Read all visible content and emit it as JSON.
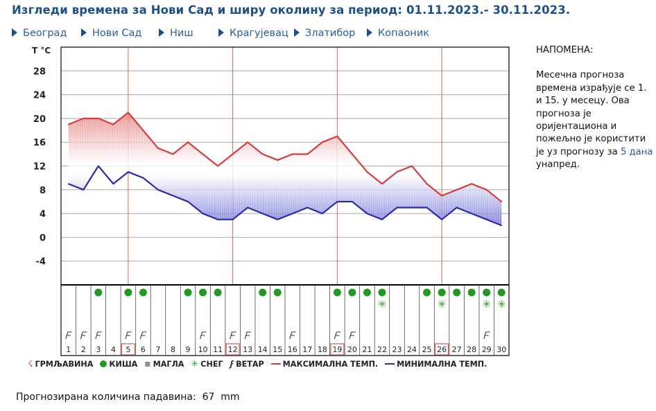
{
  "header": {
    "title": "Изгледи времена за Нови Сад и ширу околину за период: 01.11.2023.- 30.11.2023."
  },
  "cities": [
    {
      "label": "Београд"
    },
    {
      "label": "Нови Сад"
    },
    {
      "label": "Ниш"
    },
    {
      "label": "Крагујевац"
    },
    {
      "label": "Златибор"
    },
    {
      "label": "Копаоник"
    }
  ],
  "note": {
    "heading": "НАПОМЕНА:",
    "text_before": "Месечна прогноза времена израђује се 1. и 15. у месецу. Ова прогноза је оријентациона и пожељно је користити је уз прогнозу за ",
    "link": "5 дана",
    "text_after": " унапред."
  },
  "legend": {
    "thunder": "ГРМЉАВИНА",
    "rain": "КИША",
    "fog": "МАГЛА",
    "snow": "СНЕГ",
    "wind": "ВЕТАР",
    "max_temp": "МАКСИМАЛНА ТЕМП.",
    "min_temp": "МИНИМАЛНА ТЕМП."
  },
  "precip": {
    "label": "Прогнозирана количина падавина:",
    "value": "67",
    "unit": "mm"
  },
  "colors": {
    "title": "#1f4f8a",
    "link": "#2a5d9a",
    "max_line": "#d83a3a",
    "min_line": "#2a2aa8",
    "rain": "#229922",
    "snow": "#22a022",
    "week_marker": "#e06060"
  },
  "chart_data": {
    "type": "line",
    "ylabel": "T °C",
    "ylim": [
      -8,
      32
    ],
    "yticks": [
      -4,
      0,
      4,
      8,
      12,
      16,
      20,
      24,
      28
    ],
    "x": [
      1,
      2,
      3,
      4,
      5,
      6,
      7,
      8,
      9,
      10,
      11,
      12,
      13,
      14,
      15,
      16,
      17,
      18,
      19,
      20,
      21,
      22,
      23,
      24,
      25,
      26,
      27,
      28,
      29,
      30
    ],
    "series": [
      {
        "name": "МАКСИМАЛНА ТЕМП.",
        "color": "#d83a3a",
        "values": [
          19,
          20,
          20,
          19,
          21,
          18,
          15,
          14,
          16,
          14,
          12,
          14,
          16,
          14,
          13,
          14,
          14,
          16,
          17,
          14,
          11,
          9,
          11,
          12,
          9,
          7,
          8,
          9,
          8,
          6
        ]
      },
      {
        "name": "МИНИМАЛНА ТЕМП.",
        "color": "#2a2aa8",
        "values": [
          9,
          8,
          12,
          9,
          11,
          10,
          8,
          7,
          6,
          4,
          3,
          3,
          5,
          4,
          3,
          4,
          5,
          4,
          6,
          6,
          4,
          3,
          5,
          5,
          5,
          3,
          5,
          4,
          3,
          2
        ]
      }
    ],
    "highlighted_days": [
      5,
      12,
      19,
      26
    ],
    "rain_days": [
      3,
      5,
      6,
      9,
      10,
      11,
      14,
      15,
      19,
      20,
      21,
      22,
      25,
      26,
      27,
      28,
      29,
      30
    ],
    "snow_days": [
      22,
      26,
      29,
      30
    ],
    "wind_days": [
      1,
      2,
      3,
      5,
      6,
      10,
      12,
      13,
      16,
      19,
      20,
      29
    ]
  }
}
